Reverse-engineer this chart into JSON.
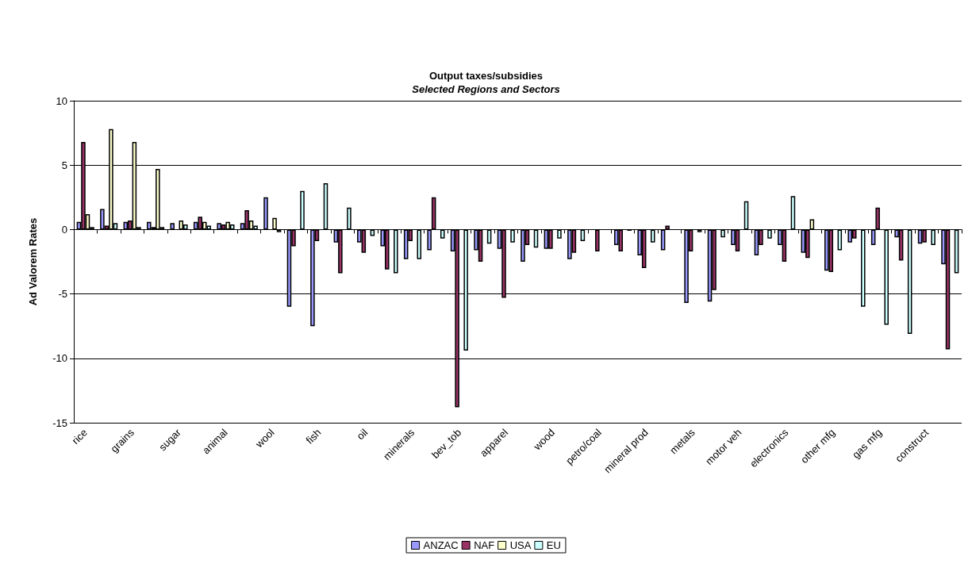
{
  "chart_data": {
    "type": "bar",
    "title": "Output taxes/subsidies",
    "subtitle": "Selected Regions and Sectors",
    "ylabel": "Ad Valorem Rates",
    "categories": [
      "rice",
      null,
      "grains",
      null,
      "sugar",
      null,
      "animal",
      null,
      "wool",
      null,
      "fish",
      null,
      "oil",
      null,
      "minerals",
      null,
      "bev_tob",
      null,
      "apparel",
      null,
      "wood",
      null,
      "petro/coal",
      null,
      "mineral prod",
      null,
      "metals",
      null,
      "motor veh",
      null,
      "electronics",
      null,
      "other mfg",
      null,
      "gas mfg",
      null,
      "construct",
      null
    ],
    "series": [
      {
        "name": "ANZAC",
        "color": "#9999ff",
        "values": [
          0.6,
          1.6,
          0.6,
          0.6,
          0.5,
          0.6,
          0.5,
          0.5,
          2.5,
          -6.0,
          -7.5,
          -1.0,
          -1.0,
          -1.3,
          -2.3,
          -1.6,
          -1.7,
          -1.6,
          -1.5,
          -2.5,
          -1.5,
          -2.3,
          null,
          -1.2,
          -2.0,
          -1.6,
          -5.7,
          -5.6,
          -1.2,
          -2.0,
          -1.2,
          -1.8,
          -3.2,
          -1.0,
          -1.2,
          -0.6,
          -1.1,
          -2.7
        ]
      },
      {
        "name": "NAF",
        "color": "#993366",
        "values": [
          6.8,
          0.3,
          0.7,
          0.2,
          null,
          1.0,
          0.4,
          1.5,
          null,
          -1.3,
          -0.9,
          -3.4,
          -1.8,
          -3.1,
          -0.9,
          2.5,
          -13.8,
          -2.5,
          -5.3,
          -1.2,
          -1.5,
          -1.8,
          -1.7,
          -1.7,
          -3.0,
          0.3,
          -1.7,
          -4.7,
          -1.7,
          -1.2,
          -2.5,
          -2.2,
          -3.3,
          -0.7,
          1.7,
          -2.4,
          -1.0,
          -9.3
        ]
      },
      {
        "name": "USA",
        "color": "#ffffcc",
        "values": [
          1.2,
          7.8,
          6.8,
          4.7,
          0.7,
          0.6,
          0.6,
          0.7,
          0.9,
          null,
          null,
          null,
          null,
          null,
          null,
          null,
          null,
          null,
          null,
          null,
          null,
          null,
          null,
          null,
          null,
          null,
          null,
          null,
          null,
          null,
          null,
          0.8,
          null,
          null,
          null,
          null,
          null,
          null
        ]
      },
      {
        "name": "EU",
        "color": "#ccffff",
        "values": [
          0.2,
          0.5,
          0.2,
          0.2,
          0.4,
          0.3,
          0.4,
          0.3,
          -0.2,
          3.0,
          3.6,
          1.7,
          -0.5,
          -3.4,
          -2.3,
          -0.7,
          -9.4,
          -1.1,
          -1.0,
          -1.4,
          -0.7,
          -0.9,
          null,
          -0.1,
          -1.0,
          null,
          -0.2,
          -0.6,
          2.2,
          -0.7,
          2.6,
          null,
          -1.6,
          -6.0,
          -7.4,
          -8.1,
          -1.2,
          -3.4
        ]
      }
    ],
    "ylim": [
      -15,
      10
    ],
    "yticks": [
      -15,
      -10,
      -5,
      0,
      5,
      10
    ],
    "grid": "y",
    "legend": "bottom"
  }
}
